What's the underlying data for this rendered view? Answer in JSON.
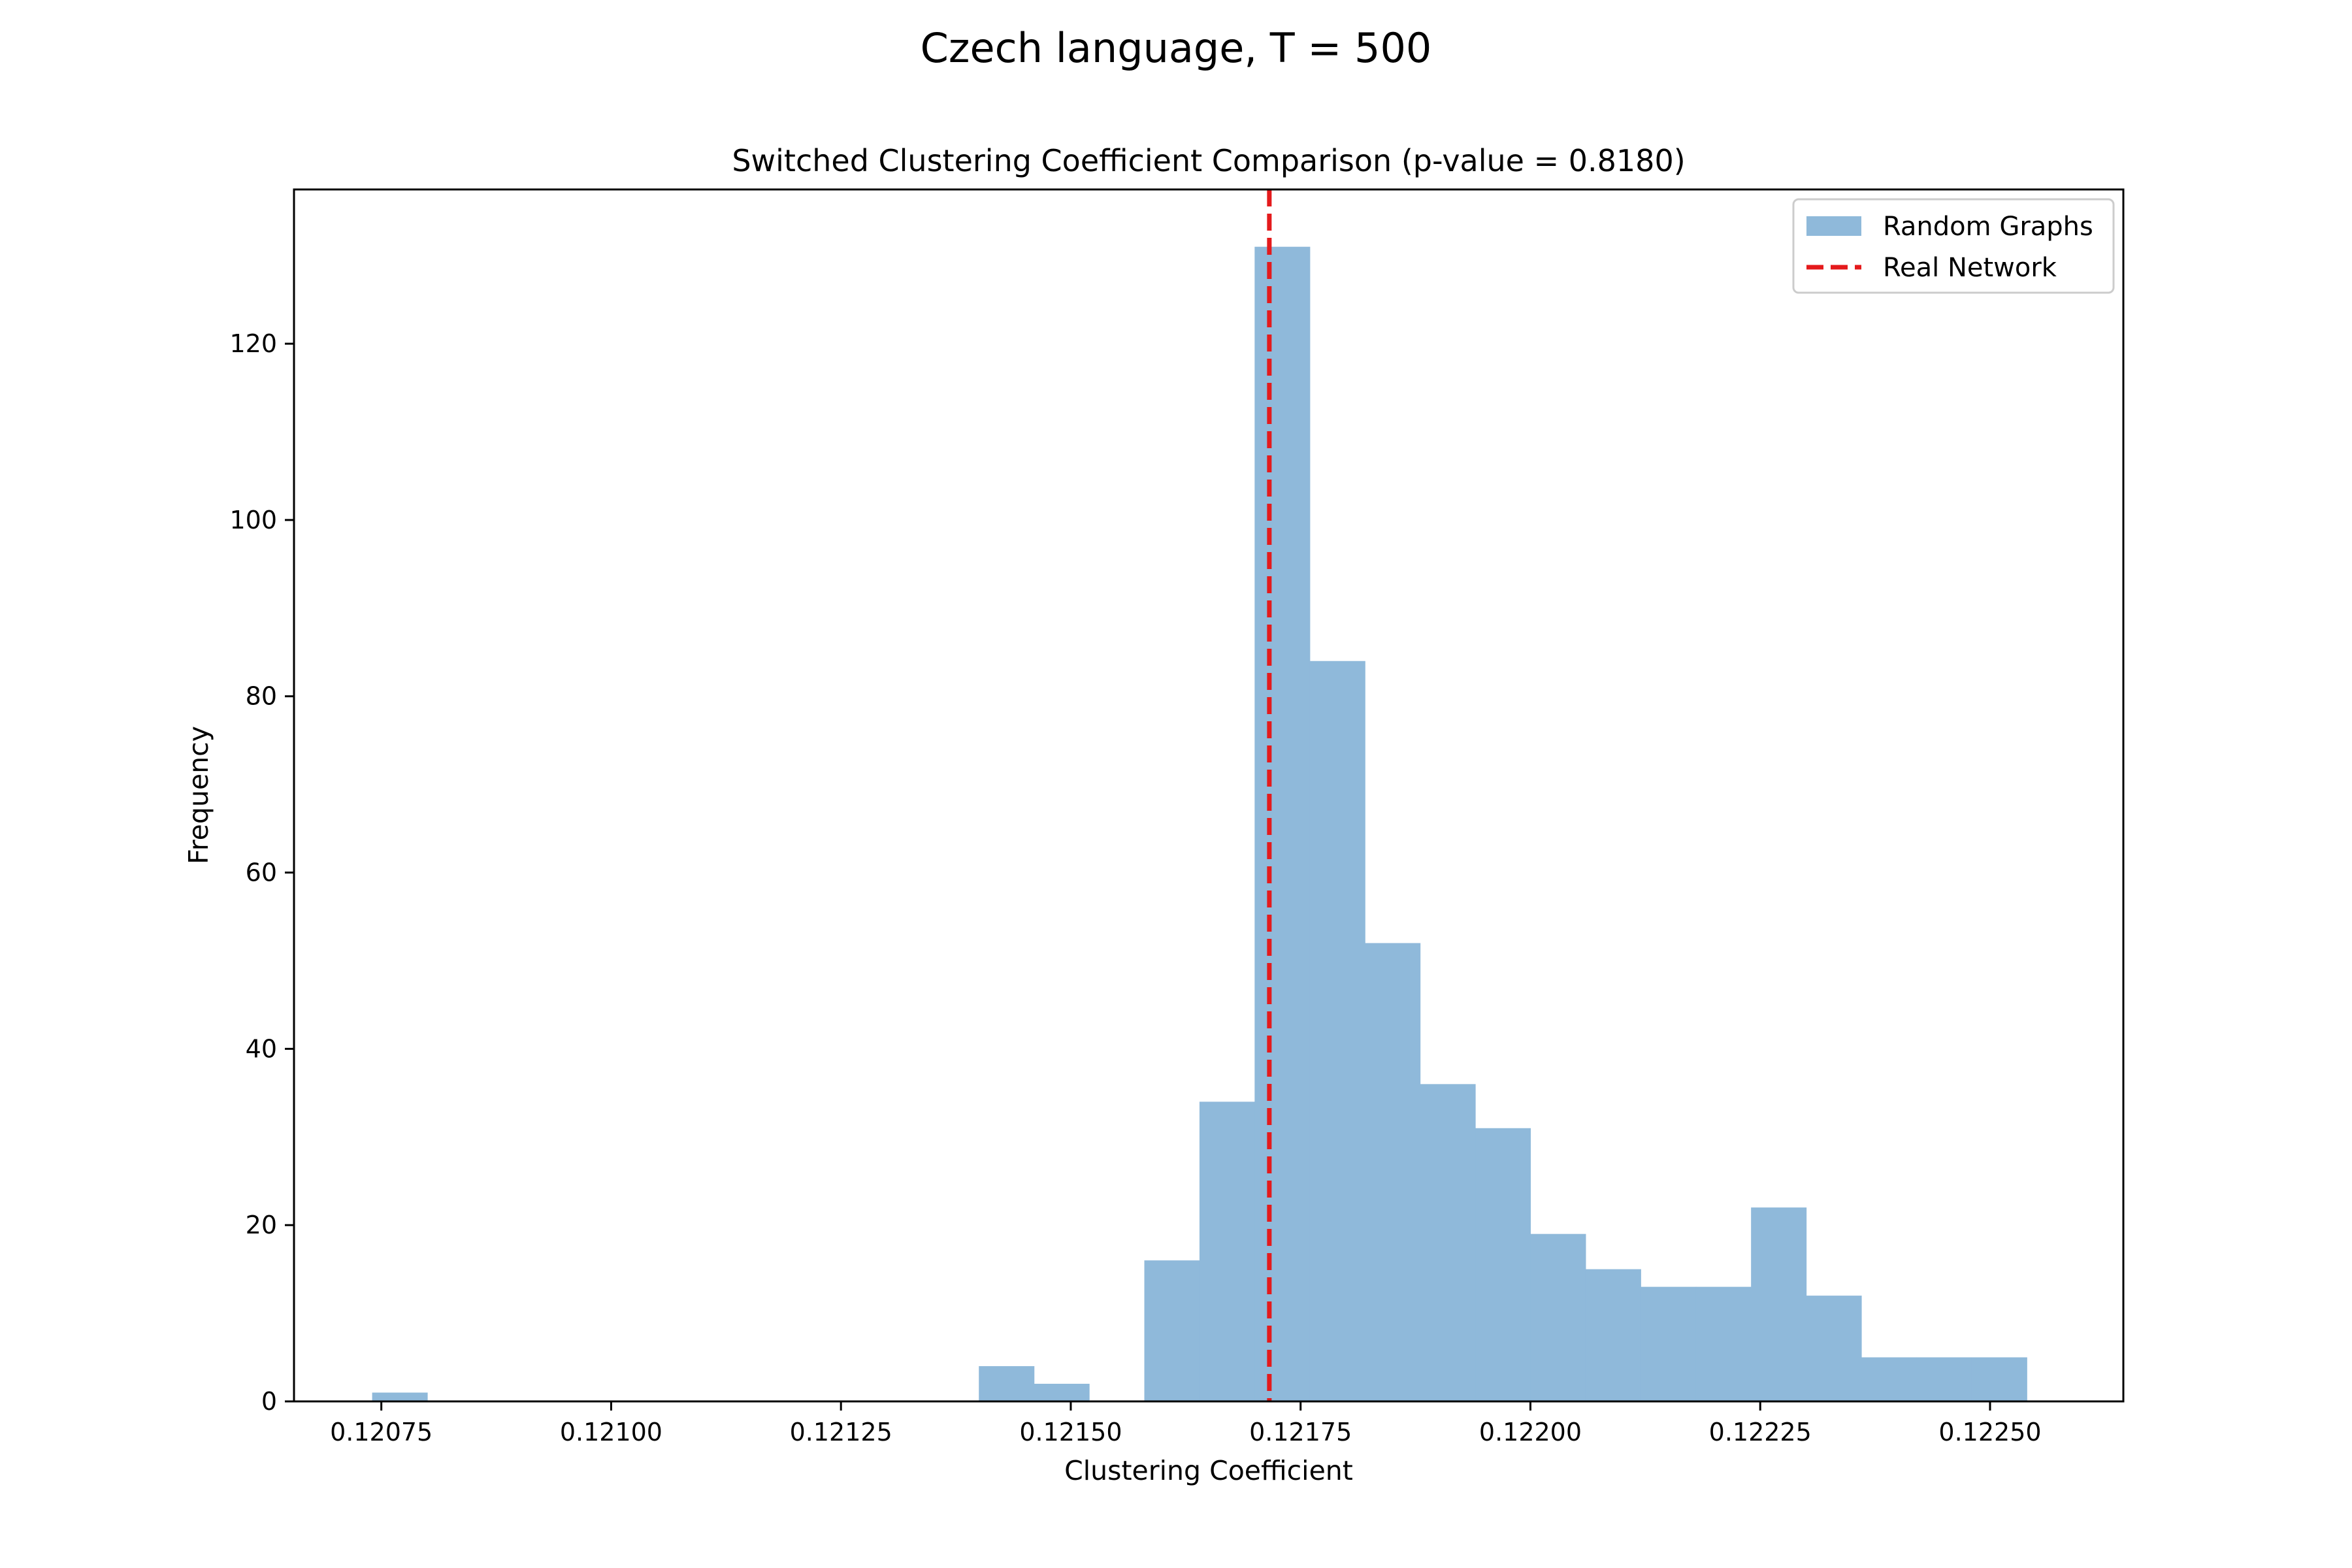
{
  "figure": {
    "suptitle": "Czech language, T = 500"
  },
  "chart_data": {
    "type": "bar",
    "title": "Switched Clustering Coefficient Comparison (p-value = 0.8180)",
    "xlabel": "Clustering Coefficient",
    "ylabel": "Frequency",
    "xlim": [
      0.120655,
      0.122645
    ],
    "ylim": [
      0,
      137.5
    ],
    "x_ticks": [
      0.12075,
      0.121,
      0.12125,
      0.1215,
      0.12175,
      0.122,
      0.12225,
      0.1225
    ],
    "x_tick_labels": [
      "0.12075",
      "0.12100",
      "0.12125",
      "0.12150",
      "0.12175",
      "0.12200",
      "0.12225",
      "0.12250"
    ],
    "y_ticks": [
      0,
      20,
      40,
      60,
      80,
      100,
      120
    ],
    "y_tick_labels": [
      "0",
      "20",
      "40",
      "60",
      "80",
      "100",
      "120"
    ],
    "bin_edges": [
      0.12074,
      0.1208,
      0.12086,
      0.12092,
      0.12098,
      0.12104,
      0.1211,
      0.12116,
      0.12122,
      0.12128,
      0.12134,
      0.1214,
      0.12146,
      0.12152,
      0.12158,
      0.12164,
      0.1217,
      0.12176,
      0.12182,
      0.12188,
      0.12194,
      0.122,
      0.12206,
      0.12212,
      0.12218,
      0.12224,
      0.1223,
      0.12236,
      0.12242,
      0.12248,
      0.12254
    ],
    "series": [
      {
        "name": "Random Graphs",
        "color": "#8fb9da",
        "values": [
          1,
          0,
          0,
          0,
          0,
          0,
          0,
          0,
          0,
          0,
          0,
          4,
          2,
          0,
          16,
          34,
          131,
          84,
          52,
          36,
          31,
          19,
          15,
          13,
          13,
          22,
          12,
          5,
          5,
          5
        ]
      }
    ],
    "reference_line": {
      "name": "Real Network",
      "x": 0.121716,
      "color": "#e41a1c",
      "style": "dashed"
    },
    "legend_position": "top-right",
    "grid": false
  }
}
